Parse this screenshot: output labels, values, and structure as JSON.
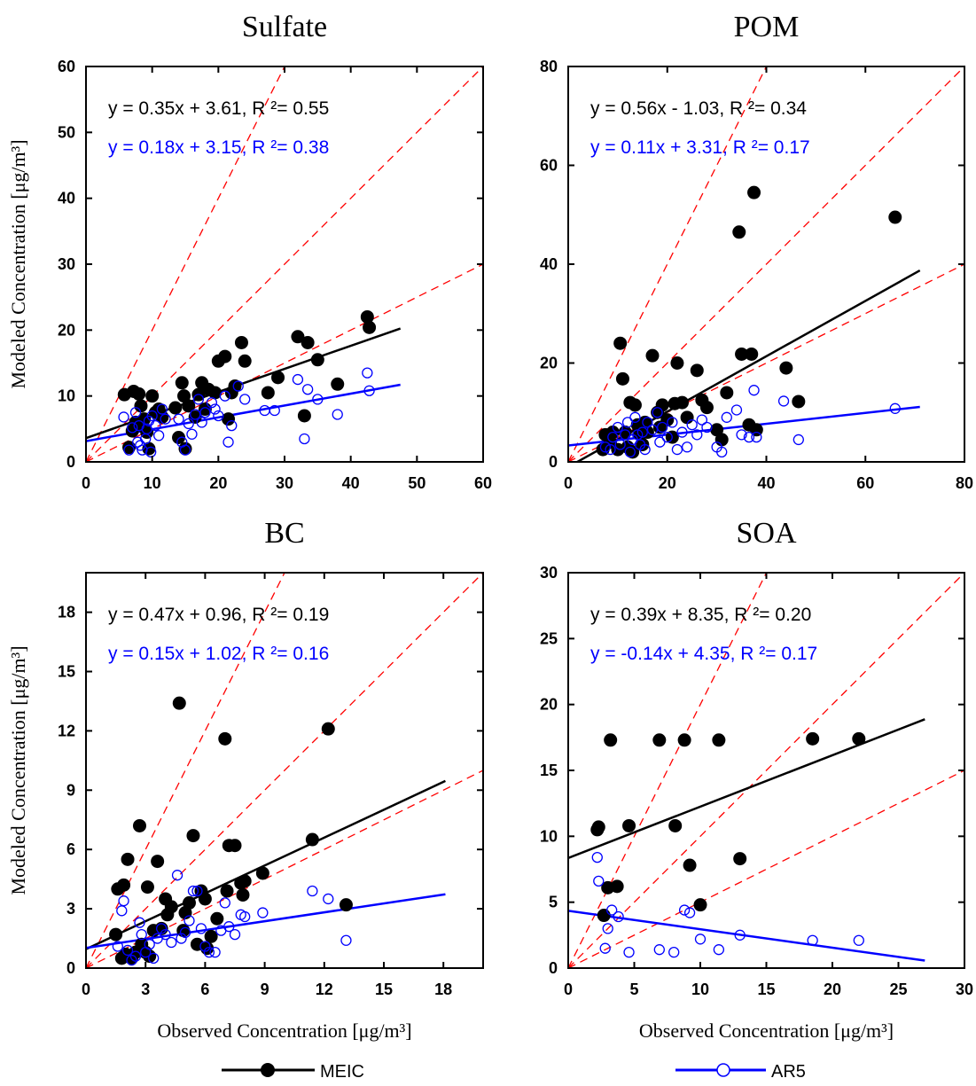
{
  "figure": {
    "y_label": "Modeled Concentration [μg/m³]",
    "x_label": "Observed Concentration [μg/m³]",
    "legend": [
      {
        "name": "MEIC",
        "color": "#000000",
        "marker": "filled-circle"
      },
      {
        "name": "AR5",
        "color": "#0000ff",
        "marker": "open-circle"
      }
    ],
    "colors": {
      "meic": "#000000",
      "ar5": "#0000ff",
      "reference": "#ff0000"
    }
  },
  "chart_data": [
    {
      "id": "sulfate",
      "type": "scatter",
      "title": "Sulfate",
      "xlim": [
        0,
        60
      ],
      "ylim": [
        0,
        60
      ],
      "xticks": [
        "0",
        "10",
        "20",
        "30",
        "40",
        "50",
        "60"
      ],
      "yticks": [
        "0",
        "10",
        "20",
        "30",
        "40",
        "50",
        "60"
      ],
      "reference_slopes": [
        0.5,
        1,
        2
      ],
      "meic_eq": "y =  0.35x +  3.61, R ²=  0.55",
      "ar5_eq": "y =  0.18x +  3.15, R ²=  0.38",
      "meic_fit": {
        "slope": 0.35,
        "intercept": 3.61,
        "x_end": 47.5
      },
      "ar5_fit": {
        "slope": 0.18,
        "intercept": 3.15,
        "x_end": 47.5
      },
      "meic_points": [
        [
          5.8,
          10.2
        ],
        [
          6.5,
          2.2
        ],
        [
          7.0,
          4.7
        ],
        [
          7.2,
          10.7
        ],
        [
          7.5,
          6.0
        ],
        [
          8.0,
          10.3
        ],
        [
          8.3,
          8.5
        ],
        [
          8.5,
          5.5
        ],
        [
          8.8,
          6.5
        ],
        [
          9.2,
          4.5
        ],
        [
          9.5,
          2.0
        ],
        [
          10.0,
          10.0
        ],
        [
          10.5,
          7.5
        ],
        [
          11.0,
          8.0
        ],
        [
          11.5,
          6.8
        ],
        [
          13.5,
          8.2
        ],
        [
          14.0,
          3.7
        ],
        [
          14.5,
          12.0
        ],
        [
          14.8,
          10.0
        ],
        [
          15.0,
          2.0
        ],
        [
          15.5,
          8.5
        ],
        [
          16.5,
          6.8
        ],
        [
          17.0,
          10.2
        ],
        [
          17.5,
          12.0
        ],
        [
          18.0,
          8.0
        ],
        [
          18.5,
          11.0
        ],
        [
          19.5,
          10.5
        ],
        [
          20.0,
          15.3
        ],
        [
          21.0,
          16.0
        ],
        [
          21.5,
          6.5
        ],
        [
          22.0,
          10.5
        ],
        [
          22.5,
          11.5
        ],
        [
          23.5,
          18.1
        ],
        [
          24.0,
          15.3
        ],
        [
          27.5,
          10.5
        ],
        [
          29.0,
          12.8
        ],
        [
          32.0,
          19.0
        ],
        [
          33.0,
          7.0
        ],
        [
          33.5,
          18.1
        ],
        [
          35.0,
          15.5
        ],
        [
          38.0,
          11.8
        ],
        [
          42.5,
          22.0
        ],
        [
          42.8,
          20.4
        ]
      ],
      "ar5_points": [
        [
          5.7,
          6.8
        ],
        [
          6.5,
          1.8
        ],
        [
          7.0,
          5.2
        ],
        [
          7.5,
          7.5
        ],
        [
          7.8,
          3.0
        ],
        [
          8.0,
          5.5
        ],
        [
          8.2,
          2.5
        ],
        [
          8.5,
          1.8
        ],
        [
          9.0,
          3.5
        ],
        [
          9.2,
          5.0
        ],
        [
          9.5,
          6.2
        ],
        [
          9.8,
          1.5
        ],
        [
          10.0,
          7.0
        ],
        [
          10.5,
          5.5
        ],
        [
          11.0,
          4.0
        ],
        [
          11.5,
          8.0
        ],
        [
          12.0,
          6.5
        ],
        [
          14.0,
          6.5
        ],
        [
          14.5,
          3.0
        ],
        [
          15.0,
          1.8
        ],
        [
          15.5,
          5.8
        ],
        [
          16.0,
          4.2
        ],
        [
          16.5,
          7.2
        ],
        [
          17.0,
          9.5
        ],
        [
          17.5,
          6.0
        ],
        [
          18.0,
          7.5
        ],
        [
          19.0,
          9.0
        ],
        [
          19.5,
          8.0
        ],
        [
          20.0,
          7.0
        ],
        [
          21.0,
          10.0
        ],
        [
          21.5,
          3.0
        ],
        [
          22.0,
          5.5
        ],
        [
          23.0,
          11.5
        ],
        [
          24.0,
          9.5
        ],
        [
          27.0,
          7.8
        ],
        [
          28.5,
          7.8
        ],
        [
          32.0,
          12.5
        ],
        [
          33.0,
          3.5
        ],
        [
          33.5,
          11.0
        ],
        [
          35.0,
          9.5
        ],
        [
          38.0,
          7.2
        ],
        [
          42.5,
          13.5
        ],
        [
          42.8,
          10.8
        ]
      ]
    },
    {
      "id": "pom",
      "type": "scatter",
      "title": "POM",
      "xlim": [
        0,
        80
      ],
      "ylim": [
        0,
        80
      ],
      "xticks": [
        "0",
        "20",
        "40",
        "60",
        "80"
      ],
      "yticks": [
        "0",
        "20",
        "40",
        "60",
        "80"
      ],
      "reference_slopes": [
        0.5,
        1,
        2
      ],
      "meic_eq": "y =  0.56x -  1.03, R ²=  0.34",
      "ar5_eq": "y =  0.11x +  3.31, R ²=  0.17",
      "meic_fit": {
        "slope": 0.56,
        "intercept": -1.03,
        "x_end": 71
      },
      "ar5_fit": {
        "slope": 0.11,
        "intercept": 3.31,
        "x_end": 71
      },
      "meic_points": [
        [
          7.0,
          2.5
        ],
        [
          7.5,
          5.5
        ],
        [
          8.5,
          4.0
        ],
        [
          9.0,
          6.0
        ],
        [
          10.0,
          2.5
        ],
        [
          10.5,
          24.0
        ],
        [
          11.0,
          16.8
        ],
        [
          11.5,
          6.0
        ],
        [
          12.0,
          3.0
        ],
        [
          12.5,
          12.0
        ],
        [
          13.0,
          2.0
        ],
        [
          13.5,
          11.5
        ],
        [
          14.0,
          7.5
        ],
        [
          14.5,
          5.5
        ],
        [
          15.0,
          3.5
        ],
        [
          15.5,
          8.0
        ],
        [
          16.0,
          6.0
        ],
        [
          17.0,
          21.5
        ],
        [
          18.0,
          10.0
        ],
        [
          18.5,
          7.0
        ],
        [
          19.0,
          11.5
        ],
        [
          20.0,
          8.5
        ],
        [
          21.0,
          5.0
        ],
        [
          21.5,
          11.8
        ],
        [
          22.0,
          20.0
        ],
        [
          23.0,
          12.0
        ],
        [
          24.0,
          9.0
        ],
        [
          26.0,
          18.5
        ],
        [
          27.0,
          12.5
        ],
        [
          28.0,
          11.0
        ],
        [
          30.0,
          6.5
        ],
        [
          31.0,
          4.5
        ],
        [
          32.0,
          14.0
        ],
        [
          34.5,
          46.5
        ],
        [
          35.0,
          21.8
        ],
        [
          36.5,
          7.5
        ],
        [
          37.0,
          21.8
        ],
        [
          37.5,
          54.5
        ],
        [
          38.0,
          6.5
        ],
        [
          44.0,
          19.0
        ],
        [
          46.5,
          12.2
        ],
        [
          66.0,
          49.5
        ]
      ],
      "ar5_points": [
        [
          7.5,
          3.0
        ],
        [
          8.5,
          2.5
        ],
        [
          9.0,
          5.0
        ],
        [
          10.0,
          7.0
        ],
        [
          10.5,
          3.5
        ],
        [
          11.5,
          5.5
        ],
        [
          12.0,
          8.0
        ],
        [
          12.5,
          2.0
        ],
        [
          13.0,
          4.5
        ],
        [
          13.5,
          9.0
        ],
        [
          14.0,
          5.5
        ],
        [
          14.5,
          3.5
        ],
        [
          15.0,
          6.0
        ],
        [
          15.5,
          2.5
        ],
        [
          16.0,
          8.0
        ],
        [
          17.0,
          6.5
        ],
        [
          18.0,
          10.0
        ],
        [
          18.5,
          4.0
        ],
        [
          19.0,
          7.0
        ],
        [
          20.0,
          5.0
        ],
        [
          21.0,
          8.0
        ],
        [
          22.0,
          2.5
        ],
        [
          23.0,
          6.0
        ],
        [
          24.0,
          3.0
        ],
        [
          25.0,
          7.5
        ],
        [
          26.0,
          5.5
        ],
        [
          27.0,
          8.5
        ],
        [
          28.0,
          7.0
        ],
        [
          30.0,
          3.0
        ],
        [
          31.0,
          2.0
        ],
        [
          32.0,
          9.0
        ],
        [
          34.0,
          10.5
        ],
        [
          35.0,
          5.5
        ],
        [
          36.5,
          5.0
        ],
        [
          37.5,
          14.5
        ],
        [
          38.0,
          5.0
        ],
        [
          43.5,
          12.3
        ],
        [
          46.5,
          4.5
        ],
        [
          66.0,
          10.8
        ]
      ]
    },
    {
      "id": "bc",
      "type": "scatter",
      "title": "BC",
      "xlim": [
        0,
        20
      ],
      "ylim": [
        0,
        20
      ],
      "xticks": [
        "0",
        "3",
        "6",
        "9",
        "12",
        "15",
        "18"
      ],
      "yticks": [
        "0",
        "3",
        "6",
        "9",
        "12",
        "15",
        "18"
      ],
      "reference_slopes": [
        0.5,
        1,
        2
      ],
      "meic_eq": "y =  0.47x +  0.96, R ²=  0.19",
      "ar5_eq": "y =  0.15x +  1.02, R ²=  0.16",
      "meic_fit": {
        "slope": 0.47,
        "intercept": 0.96,
        "x_end": 18.1
      },
      "ar5_fit": {
        "slope": 0.15,
        "intercept": 1.02,
        "x_end": 18.1
      },
      "meic_points": [
        [
          1.5,
          1.7
        ],
        [
          1.6,
          4.0
        ],
        [
          1.8,
          0.5
        ],
        [
          1.9,
          4.2
        ],
        [
          2.0,
          0.7
        ],
        [
          2.1,
          5.5
        ],
        [
          2.3,
          0.5
        ],
        [
          2.5,
          0.8
        ],
        [
          2.7,
          7.2
        ],
        [
          2.8,
          1.2
        ],
        [
          3.0,
          0.8
        ],
        [
          3.1,
          4.1
        ],
        [
          3.2,
          0.6
        ],
        [
          3.4,
          1.9
        ],
        [
          3.6,
          5.4
        ],
        [
          3.8,
          2.0
        ],
        [
          4.0,
          3.5
        ],
        [
          4.1,
          2.7
        ],
        [
          4.3,
          3.1
        ],
        [
          4.7,
          13.4
        ],
        [
          4.9,
          1.9
        ],
        [
          5.0,
          2.8
        ],
        [
          5.2,
          3.3
        ],
        [
          5.4,
          6.7
        ],
        [
          5.6,
          1.2
        ],
        [
          5.8,
          3.9
        ],
        [
          6.0,
          3.5
        ],
        [
          6.1,
          1.0
        ],
        [
          6.3,
          1.6
        ],
        [
          6.6,
          2.5
        ],
        [
          7.0,
          11.6
        ],
        [
          7.1,
          3.9
        ],
        [
          7.2,
          6.2
        ],
        [
          7.5,
          6.2
        ],
        [
          7.8,
          4.3
        ],
        [
          7.9,
          3.7
        ],
        [
          8.0,
          4.4
        ],
        [
          8.9,
          4.8
        ],
        [
          11.4,
          6.5
        ],
        [
          12.2,
          12.1
        ],
        [
          13.1,
          3.2
        ]
      ],
      "ar5_points": [
        [
          1.6,
          1.1
        ],
        [
          1.8,
          2.9
        ],
        [
          1.9,
          3.4
        ],
        [
          2.1,
          0.9
        ],
        [
          2.3,
          0.4
        ],
        [
          2.5,
          0.6
        ],
        [
          2.7,
          2.3
        ],
        [
          2.8,
          1.7
        ],
        [
          3.0,
          0.8
        ],
        [
          3.2,
          1.2
        ],
        [
          3.4,
          0.5
        ],
        [
          3.6,
          1.5
        ],
        [
          3.8,
          2.0
        ],
        [
          4.0,
          1.7
        ],
        [
          4.3,
          1.3
        ],
        [
          4.6,
          4.7
        ],
        [
          4.8,
          1.5
        ],
        [
          5.0,
          1.8
        ],
        [
          5.2,
          2.4
        ],
        [
          5.4,
          3.9
        ],
        [
          5.6,
          3.9
        ],
        [
          5.8,
          2.0
        ],
        [
          6.0,
          1.1
        ],
        [
          6.2,
          0.8
        ],
        [
          6.5,
          0.8
        ],
        [
          6.8,
          1.9
        ],
        [
          7.0,
          3.3
        ],
        [
          7.2,
          2.1
        ],
        [
          7.5,
          1.7
        ],
        [
          7.8,
          2.7
        ],
        [
          8.0,
          2.6
        ],
        [
          8.9,
          2.8
        ],
        [
          11.4,
          3.9
        ],
        [
          12.2,
          3.5
        ],
        [
          13.1,
          1.4
        ]
      ]
    },
    {
      "id": "soa",
      "type": "scatter",
      "title": "SOA",
      "xlim": [
        0,
        30
      ],
      "ylim": [
        0,
        30
      ],
      "xticks": [
        "0",
        "5",
        "10",
        "15",
        "20",
        "25",
        "30"
      ],
      "yticks": [
        "0",
        "5",
        "10",
        "15",
        "20",
        "25",
        "30"
      ],
      "reference_slopes": [
        0.5,
        1,
        2
      ],
      "meic_eq": "y =  0.39x +  8.35, R ²=  0.20",
      "ar5_eq": "y = -0.14x +  4.35, R ²=  0.17",
      "meic_fit": {
        "slope": 0.39,
        "intercept": 8.35,
        "x_end": 27
      },
      "ar5_fit": {
        "slope": -0.14,
        "intercept": 4.35,
        "x_end": 27
      },
      "meic_points": [
        [
          2.2,
          10.5
        ],
        [
          2.3,
          10.7
        ],
        [
          2.7,
          4.0
        ],
        [
          3.0,
          6.1
        ],
        [
          3.2,
          17.3
        ],
        [
          3.7,
          6.2
        ],
        [
          4.6,
          10.8
        ],
        [
          6.9,
          17.3
        ],
        [
          8.1,
          10.8
        ],
        [
          8.8,
          17.3
        ],
        [
          9.2,
          7.8
        ],
        [
          10.0,
          4.8
        ],
        [
          11.4,
          17.3
        ],
        [
          13.0,
          8.3
        ],
        [
          18.5,
          17.4
        ],
        [
          22.0,
          17.4
        ]
      ],
      "ar5_points": [
        [
          2.2,
          8.4
        ],
        [
          2.3,
          6.6
        ],
        [
          2.8,
          1.5
        ],
        [
          3.0,
          3.0
        ],
        [
          3.3,
          4.4
        ],
        [
          3.8,
          3.9
        ],
        [
          4.6,
          1.2
        ],
        [
          6.9,
          1.4
        ],
        [
          8.0,
          1.2
        ],
        [
          8.8,
          4.4
        ],
        [
          9.2,
          4.2
        ],
        [
          10.0,
          2.2
        ],
        [
          11.4,
          1.4
        ],
        [
          13.0,
          2.5
        ],
        [
          18.5,
          2.1
        ],
        [
          22.0,
          2.1
        ]
      ]
    }
  ]
}
